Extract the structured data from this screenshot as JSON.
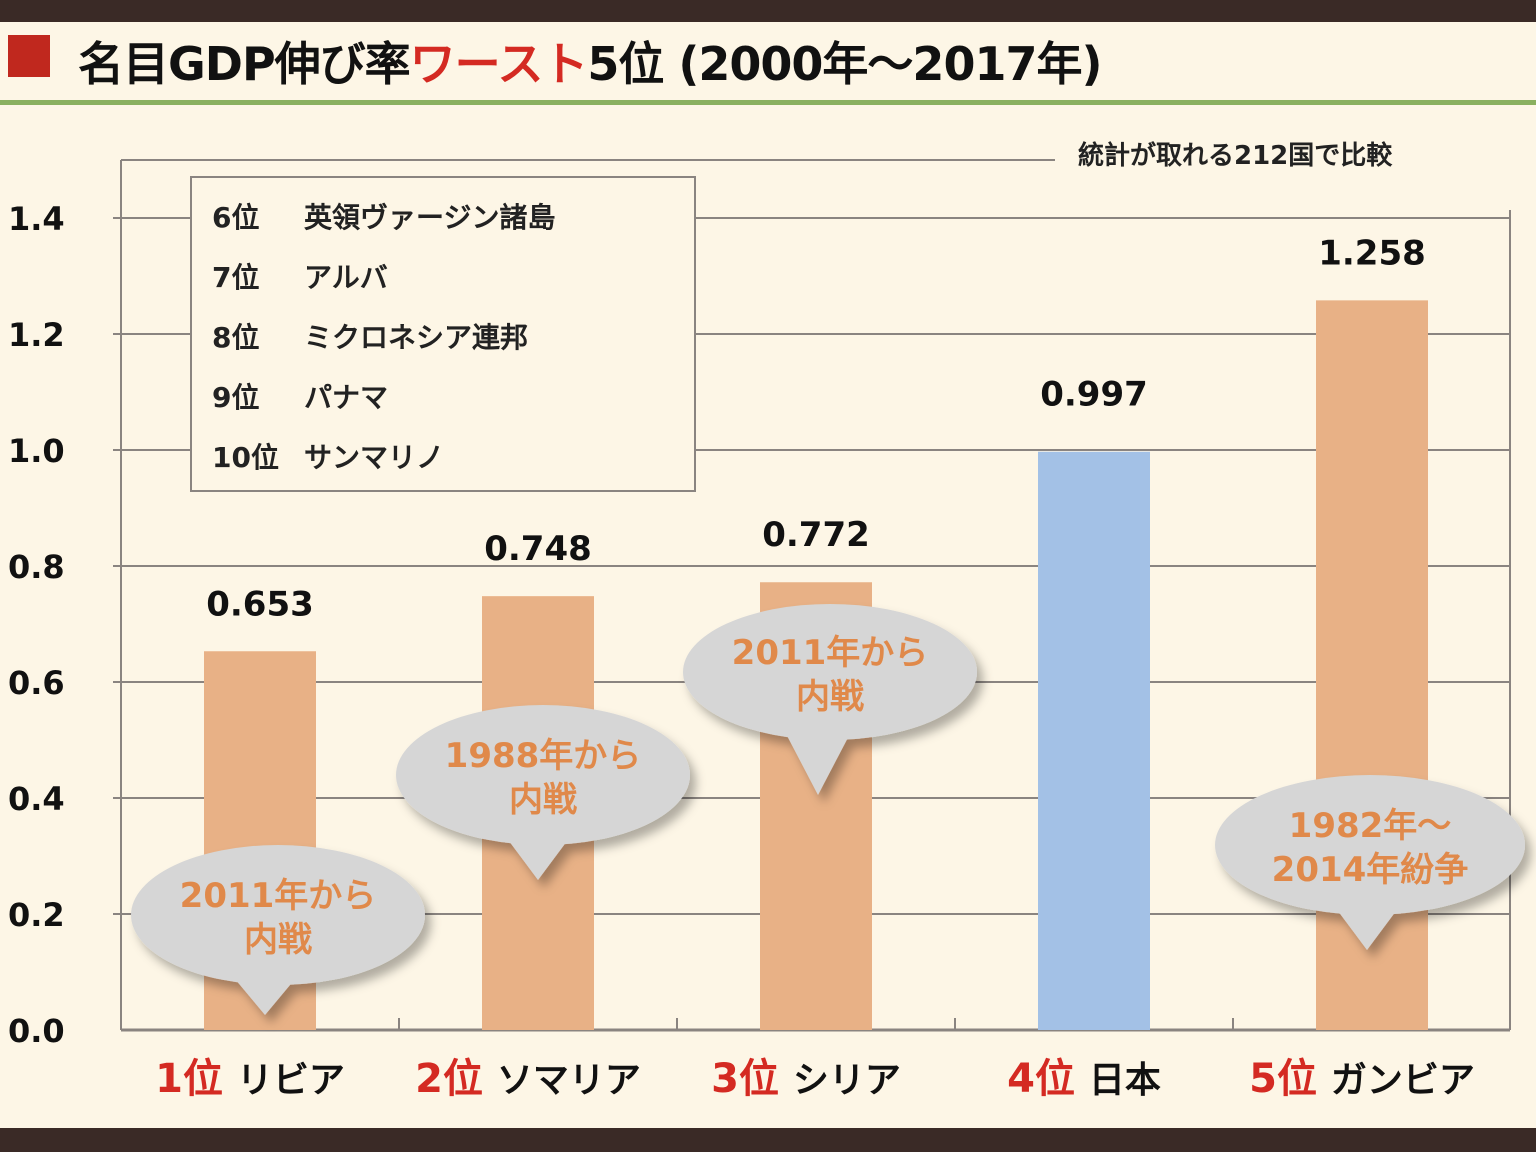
{
  "title": {
    "part1": "名目GDP伸び率",
    "highlight": "ワースト",
    "part2": "5位 (2000年～2017年)"
  },
  "note": "統計が取れる212国で比較",
  "legend": [
    {
      "rank": "6位",
      "name": "英領ヴァージン諸島"
    },
    {
      "rank": "7位",
      "name": "アルバ"
    },
    {
      "rank": "8位",
      "name": "ミクロネシア連邦"
    },
    {
      "rank": "9位",
      "name": "パナマ"
    },
    {
      "rank": "10位",
      "name": "サンマリノ"
    }
  ],
  "colors": {
    "bar": "#e8b186",
    "japan": "#a3c1e6",
    "rank_text": "#d42a22",
    "bubble": "#d6d6d6",
    "bubble_text": "#e0894a",
    "accent_line": "#8ab060",
    "title_square": "#c0281e"
  },
  "chart_data": {
    "type": "bar",
    "categories": [
      {
        "rank": "1位",
        "name": "リビア"
      },
      {
        "rank": "2位",
        "name": "ソマリア"
      },
      {
        "rank": "3位",
        "name": "シリア"
      },
      {
        "rank": "4位",
        "name": "日本"
      },
      {
        "rank": "5位",
        "name": "ガンビア"
      }
    ],
    "values": [
      0.653,
      0.748,
      0.772,
      0.997,
      1.258
    ],
    "value_labels": [
      "0.653",
      "0.748",
      "0.772",
      "0.997",
      "1.258"
    ],
    "highlight_index": 3,
    "ylim": [
      0,
      1.5
    ],
    "yticks": [
      "0.0",
      "0.2",
      "0.4",
      "0.6",
      "0.8",
      "1.0",
      "1.2",
      "1.4"
    ],
    "grid": true,
    "annotations": [
      {
        "category": 0,
        "lines": [
          "2011年から",
          "内戦"
        ]
      },
      {
        "category": 1,
        "lines": [
          "1988年から",
          "内戦"
        ]
      },
      {
        "category": 2,
        "lines": [
          "2011年から",
          "内戦"
        ]
      },
      {
        "category": 4,
        "lines": [
          "1982年～",
          "2014年紛争"
        ]
      }
    ]
  }
}
